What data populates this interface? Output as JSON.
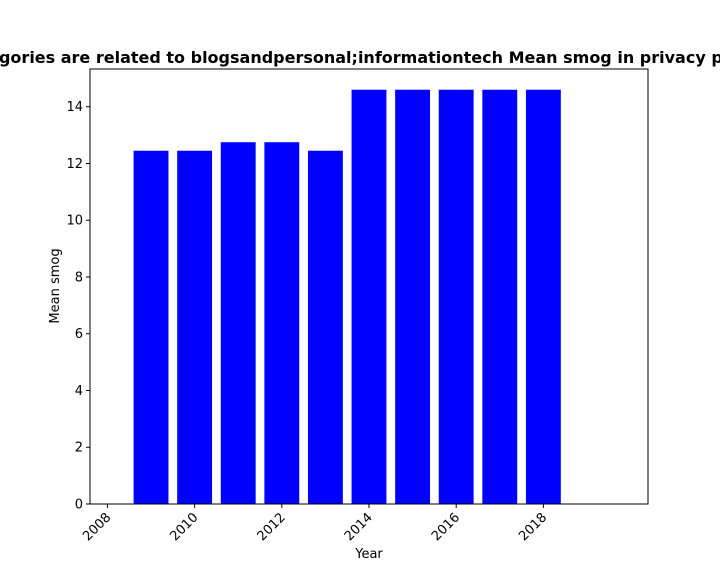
{
  "chart_data": {
    "type": "bar",
    "title": "Categories are related to blogsandpersonal;informationtech Mean smog in privacy policies",
    "xlabel": "Year",
    "ylabel": "Mean smog",
    "x": [
      2009,
      2010,
      2011,
      2012,
      2013,
      2014,
      2015,
      2016,
      2017,
      2018
    ],
    "values": [
      12.45,
      12.45,
      12.75,
      12.75,
      12.45,
      14.6,
      14.6,
      14.6,
      14.6,
      14.6
    ],
    "xlim": [
      2007.6,
      2020.4
    ],
    "ylim": [
      0,
      15.33
    ],
    "xticks": [
      "2008",
      "2010",
      "2012",
      "2014",
      "2016",
      "2018"
    ],
    "yticks": [
      "0",
      "2",
      "4",
      "6",
      "8",
      "10",
      "12",
      "14"
    ],
    "bar_color": "#0000ff",
    "grid": false,
    "legend": false
  }
}
